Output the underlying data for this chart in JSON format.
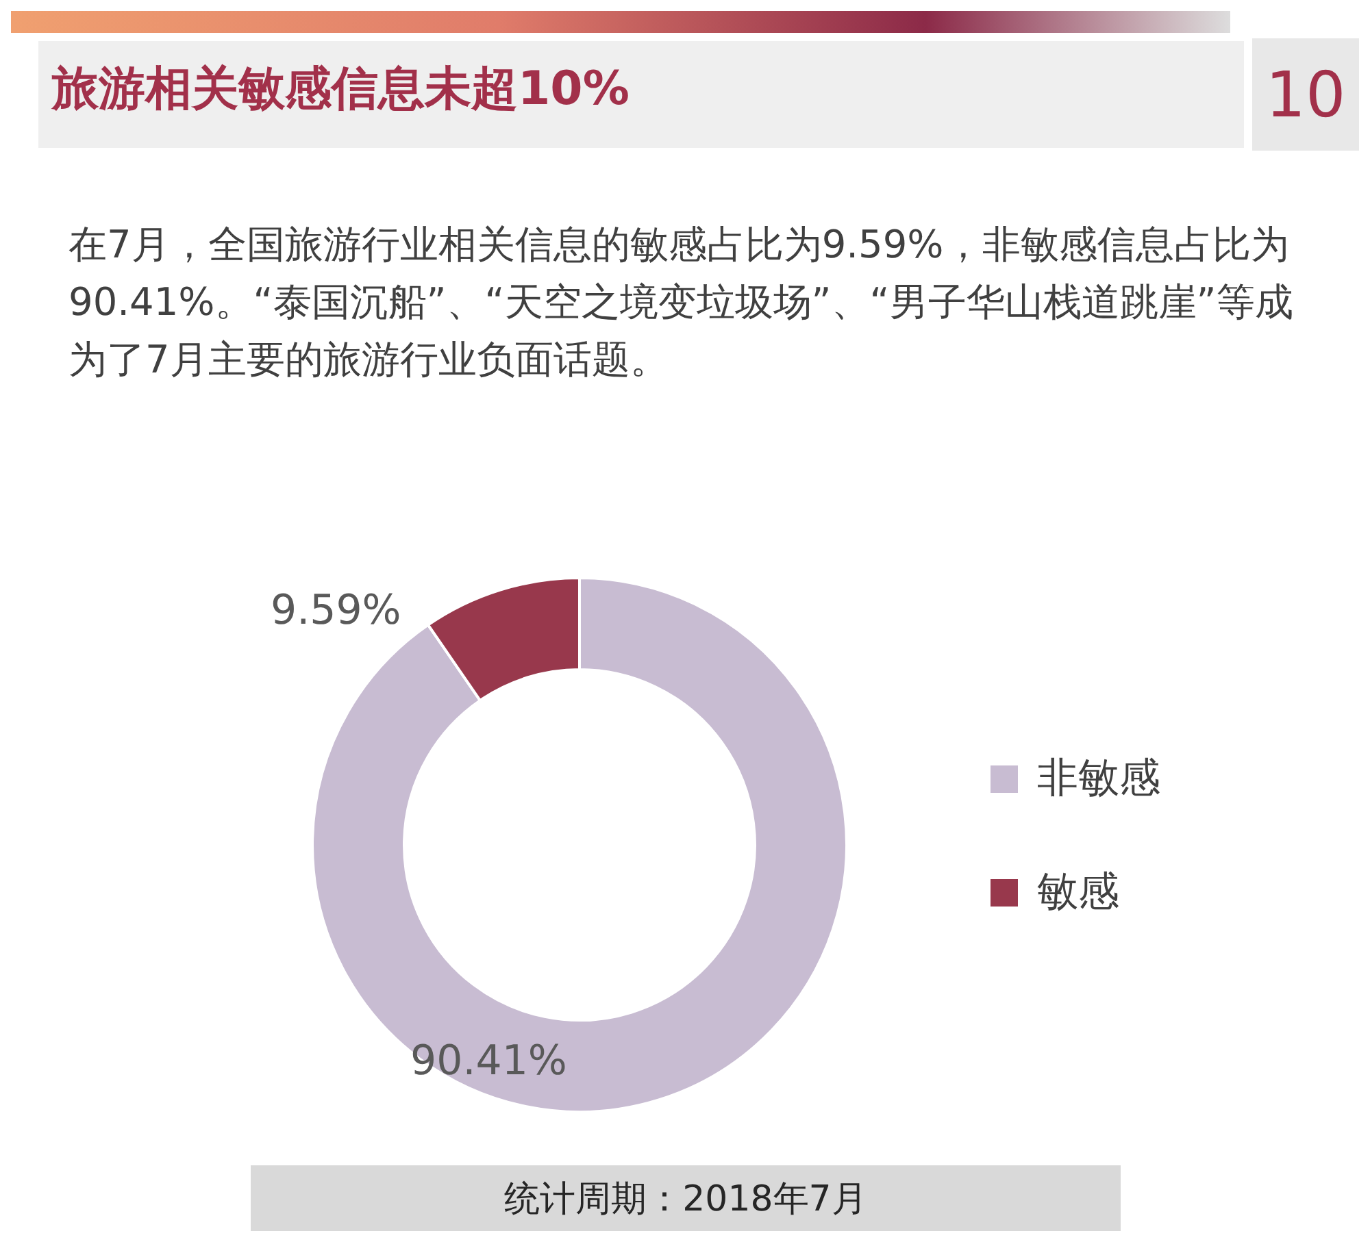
{
  "chart_data": {
    "type": "donut",
    "title": "旅游相关敏感信息未超10%",
    "subtitle": "在7月，全国旅游行业相关信息的敏感占比为9.59%，非敏感信息占比为90.41%。“泰国沉船”、“天空之境变垃圾场”、“男子华山栈道跳崖”等成为了7月主要的旅游行业负面话题。",
    "categories": [
      "非敏感",
      "敏感"
    ],
    "values": [
      90.41,
      9.59
    ],
    "colors": [
      "#c8bcd2",
      "#98384c"
    ],
    "value_labels": [
      "90.41%",
      "9.59%"
    ],
    "legend": "right",
    "annotations": [
      "10",
      "统计周期：2018年7月"
    ]
  }
}
